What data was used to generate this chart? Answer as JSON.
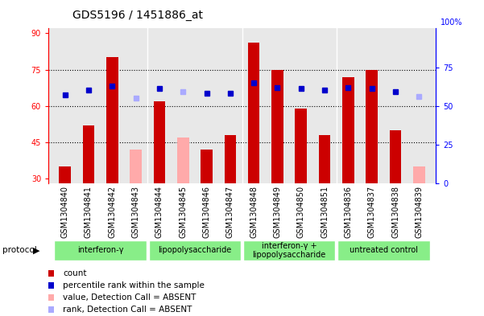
{
  "title": "GDS5196 / 1451886_at",
  "samples": [
    "GSM1304840",
    "GSM1304841",
    "GSM1304842",
    "GSM1304843",
    "GSM1304844",
    "GSM1304845",
    "GSM1304846",
    "GSM1304847",
    "GSM1304848",
    "GSM1304849",
    "GSM1304850",
    "GSM1304851",
    "GSM1304836",
    "GSM1304837",
    "GSM1304838",
    "GSM1304839"
  ],
  "count_values": [
    35,
    52,
    80,
    null,
    62,
    null,
    42,
    48,
    86,
    75,
    59,
    48,
    72,
    75,
    50,
    null
  ],
  "count_absent": [
    null,
    null,
    null,
    42,
    null,
    47,
    null,
    null,
    null,
    null,
    null,
    null,
    null,
    null,
    null,
    35
  ],
  "rank_present": [
    57,
    60,
    63,
    null,
    61,
    null,
    58,
    58,
    65,
    62,
    61,
    60,
    62,
    61,
    59,
    null
  ],
  "rank_absent": [
    null,
    null,
    null,
    55,
    null,
    59,
    null,
    null,
    null,
    null,
    null,
    null,
    null,
    null,
    null,
    56
  ],
  "groups": [
    {
      "label": "interferon-γ",
      "start": 0,
      "end": 4
    },
    {
      "label": "lipopolysaccharide",
      "start": 4,
      "end": 8
    },
    {
      "label": "interferon-γ +\nlipopolysaccharide",
      "start": 8,
      "end": 12
    },
    {
      "label": "untreated control",
      "start": 12,
      "end": 16
    }
  ],
  "ylim_left": [
    28,
    92
  ],
  "ylim_right": [
    0,
    100
  ],
  "yticks_left": [
    30,
    45,
    60,
    75,
    90
  ],
  "yticks_right": [
    0,
    25,
    50,
    75
  ],
  "bar_color": "#cc0000",
  "bar_absent_color": "#ffaaaa",
  "rank_color": "#0000cc",
  "rank_absent_color": "#aaaaff",
  "bar_width": 0.5,
  "plot_area_bg": "#e8e8e8",
  "group_color": "#88ee88",
  "group_label_fontsize": 7,
  "tick_fontsize": 7,
  "title_fontsize": 10
}
